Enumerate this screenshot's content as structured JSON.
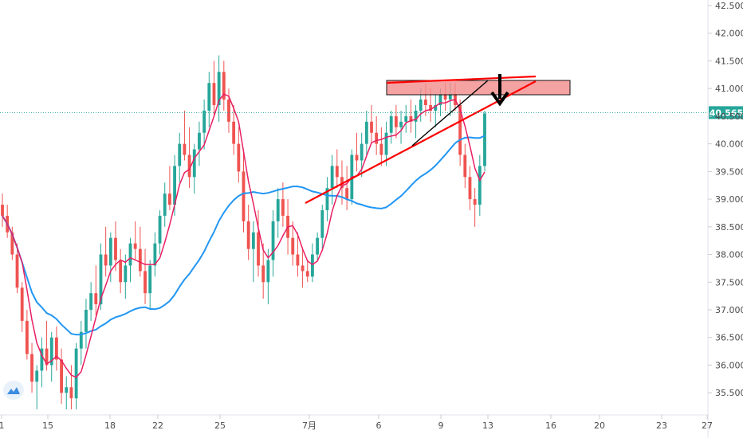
{
  "chart_data": {
    "type": "candlestick",
    "y_axis": {
      "ticks": [
        "42.500",
        "42.000",
        "41.500",
        "41.000",
        "40.500",
        "40.000",
        "39.500",
        "39.000",
        "38.500",
        "38.000",
        "37.500",
        "37.000",
        "36.500",
        "36.000",
        "35.500"
      ],
      "ylim": [
        35.1,
        42.6
      ],
      "position": "right"
    },
    "x_axis": {
      "ticks": [
        "1",
        "15",
        "18",
        "22",
        "25",
        "7月",
        "6",
        "9",
        "13",
        "16",
        "20",
        "23",
        "27"
      ]
    },
    "current_price": "40.565",
    "grid": false,
    "colors": {
      "up": "#26a69a",
      "down": "#ef5350",
      "ma_fast": "#e91e63",
      "ma_slow": "#2196f3",
      "drawing": "#ff0000",
      "zone_fill": "#f28b8b",
      "price_line": "#26a69a"
    },
    "candles": [
      [
        38.9,
        39.1,
        38.5,
        38.7
      ],
      [
        38.7,
        38.9,
        38.3,
        38.4
      ],
      [
        38.4,
        38.5,
        37.9,
        38.0
      ],
      [
        38.0,
        38.2,
        37.3,
        37.4
      ],
      [
        37.4,
        37.5,
        36.6,
        36.8
      ],
      [
        36.8,
        37.0,
        36.1,
        36.2
      ],
      [
        36.2,
        36.4,
        35.5,
        35.7
      ],
      [
        35.7,
        36.0,
        35.2,
        35.9
      ],
      [
        35.9,
        36.5,
        35.6,
        36.3
      ],
      [
        36.3,
        36.8,
        35.9,
        36.0
      ],
      [
        36.0,
        36.6,
        35.7,
        36.5
      ],
      [
        36.5,
        36.7,
        35.9,
        36.1
      ],
      [
        36.1,
        36.3,
        35.3,
        35.5
      ],
      [
        35.5,
        35.8,
        35.2,
        35.6
      ],
      [
        35.6,
        36.0,
        35.2,
        35.4
      ],
      [
        35.4,
        36.4,
        35.2,
        36.3
      ],
      [
        36.3,
        36.8,
        36.0,
        36.6
      ],
      [
        36.6,
        37.2,
        36.3,
        37.0
      ],
      [
        37.0,
        37.5,
        36.8,
        37.3
      ],
      [
        37.3,
        37.8,
        36.9,
        37.1
      ],
      [
        37.1,
        38.2,
        37.0,
        38.0
      ],
      [
        38.0,
        38.5,
        37.6,
        37.8
      ],
      [
        37.8,
        38.4,
        37.5,
        38.3
      ],
      [
        38.3,
        38.6,
        37.7,
        37.9
      ],
      [
        37.9,
        38.1,
        37.3,
        37.5
      ],
      [
        37.5,
        38.0,
        37.2,
        37.8
      ],
      [
        37.8,
        38.3,
        37.5,
        38.2
      ],
      [
        38.2,
        38.6,
        37.9,
        38.1
      ],
      [
        38.1,
        38.5,
        37.6,
        37.7
      ],
      [
        37.7,
        38.1,
        37.1,
        37.3
      ],
      [
        37.3,
        37.9,
        37.0,
        37.8
      ],
      [
        37.8,
        38.4,
        37.6,
        38.2
      ],
      [
        38.2,
        38.8,
        38.0,
        38.7
      ],
      [
        38.7,
        39.3,
        38.5,
        39.1
      ],
      [
        39.1,
        39.6,
        38.8,
        38.9
      ],
      [
        38.9,
        39.8,
        38.7,
        39.6
      ],
      [
        39.6,
        40.2,
        39.3,
        40.0
      ],
      [
        40.0,
        40.6,
        39.7,
        39.8
      ],
      [
        39.8,
        40.3,
        39.2,
        39.4
      ],
      [
        39.4,
        40.0,
        39.1,
        39.9
      ],
      [
        39.9,
        40.4,
        39.6,
        40.2
      ],
      [
        40.2,
        40.8,
        39.9,
        40.6
      ],
      [
        40.6,
        41.3,
        40.3,
        41.1
      ],
      [
        41.1,
        41.5,
        40.5,
        40.7
      ],
      [
        40.7,
        41.6,
        40.4,
        41.3
      ],
      [
        41.3,
        41.5,
        40.6,
        40.8
      ],
      [
        40.8,
        41.0,
        40.2,
        40.4
      ],
      [
        40.4,
        40.7,
        39.8,
        40.0
      ],
      [
        40.0,
        40.3,
        39.3,
        39.5
      ],
      [
        39.5,
        39.9,
        38.4,
        38.6
      ],
      [
        38.6,
        38.9,
        37.9,
        38.1
      ],
      [
        38.1,
        38.6,
        37.5,
        38.4
      ],
      [
        38.4,
        38.8,
        37.6,
        37.8
      ],
      [
        37.8,
        38.2,
        37.2,
        37.5
      ],
      [
        37.5,
        38.1,
        37.1,
        37.9
      ],
      [
        37.9,
        38.8,
        37.6,
        38.6
      ],
      [
        38.6,
        39.2,
        38.3,
        39.0
      ],
      [
        39.0,
        39.3,
        38.5,
        38.7
      ],
      [
        38.7,
        39.0,
        38.0,
        38.3
      ],
      [
        38.3,
        38.6,
        37.8,
        38.0
      ],
      [
        38.0,
        38.4,
        37.6,
        37.8
      ],
      [
        37.8,
        38.1,
        37.4,
        37.7
      ],
      [
        37.7,
        37.9,
        37.5,
        37.6
      ],
      [
        37.6,
        38.2,
        37.5,
        38.0
      ],
      [
        38.0,
        38.4,
        37.9,
        38.3
      ],
      [
        38.3,
        38.9,
        38.1,
        38.8
      ],
      [
        38.8,
        39.4,
        38.6,
        39.2
      ],
      [
        39.2,
        39.8,
        38.9,
        39.6
      ],
      [
        39.6,
        39.9,
        39.2,
        39.4
      ],
      [
        39.4,
        39.7,
        38.9,
        39.2
      ],
      [
        39.2,
        39.6,
        38.8,
        39.0
      ],
      [
        39.0,
        39.9,
        38.9,
        39.8
      ],
      [
        39.8,
        40.2,
        39.5,
        39.7
      ],
      [
        39.7,
        40.2,
        39.4,
        40.0
      ],
      [
        40.0,
        40.6,
        39.8,
        40.4
      ],
      [
        40.4,
        40.7,
        40.0,
        40.2
      ],
      [
        40.2,
        40.5,
        39.8,
        40.0
      ],
      [
        40.0,
        40.3,
        39.6,
        39.8
      ],
      [
        39.8,
        40.4,
        39.6,
        40.2
      ],
      [
        40.2,
        40.6,
        40.0,
        40.5
      ],
      [
        40.5,
        40.7,
        40.1,
        40.3
      ],
      [
        40.3,
        40.6,
        40.0,
        40.4
      ],
      [
        40.4,
        40.7,
        40.2,
        40.5
      ],
      [
        40.5,
        40.8,
        40.2,
        40.4
      ],
      [
        40.4,
        40.7,
        40.1,
        40.6
      ],
      [
        40.6,
        41.0,
        40.4,
        40.8
      ],
      [
        40.8,
        41.1,
        40.5,
        40.7
      ],
      [
        40.7,
        41.0,
        40.4,
        40.6
      ],
      [
        40.6,
        40.9,
        40.3,
        40.7
      ],
      [
        40.7,
        41.0,
        40.5,
        40.9
      ],
      [
        40.9,
        41.1,
        40.6,
        40.8
      ],
      [
        40.8,
        41.1,
        40.5,
        40.9
      ],
      [
        40.9,
        41.1,
        40.6,
        40.7
      ],
      [
        40.7,
        40.8,
        39.6,
        39.8
      ],
      [
        39.8,
        40.0,
        39.2,
        39.4
      ],
      [
        39.4,
        39.6,
        38.8,
        39.0
      ],
      [
        39.0,
        39.2,
        38.5,
        38.9
      ],
      [
        38.9,
        39.8,
        38.7,
        39.6
      ],
      [
        39.6,
        40.6,
        39.5,
        40.55
      ]
    ]
  }
}
